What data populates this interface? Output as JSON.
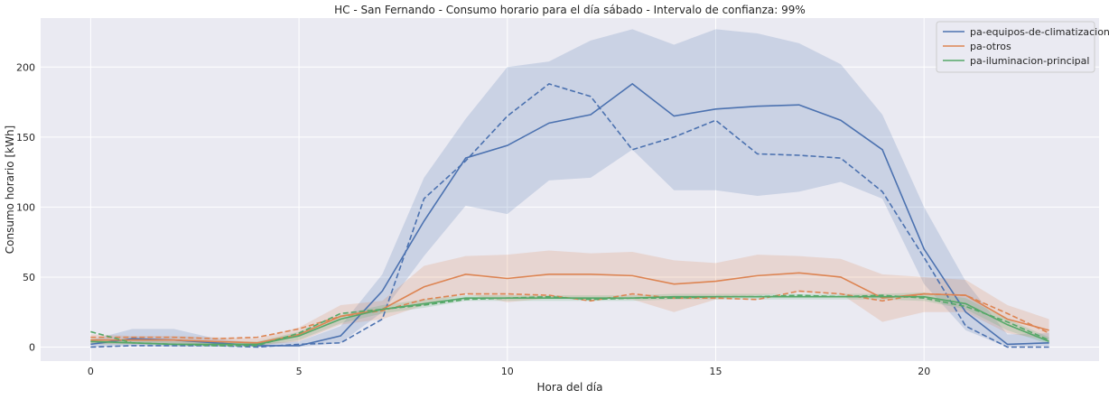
{
  "chart_data": {
    "type": "line",
    "title": "HC - San Fernando - Consumo horario para el día sábado - Intervalo de confianza: 99%",
    "xlabel": "Hora del día",
    "ylabel": "Consumo horario [kWh]",
    "xlim": [
      -1.2,
      24.2
    ],
    "ylim": [
      -10,
      235
    ],
    "xticks": [
      0,
      5,
      10,
      15,
      20
    ],
    "yticks": [
      0,
      50,
      100,
      150,
      200
    ],
    "grid": true,
    "legend_position": "top-right",
    "x": [
      0,
      1,
      2,
      3,
      4,
      5,
      6,
      7,
      8,
      9,
      10,
      11,
      12,
      13,
      14,
      15,
      16,
      17,
      18,
      19,
      20,
      21,
      22,
      23
    ],
    "series": [
      {
        "name": "pa-equipos-de-climatizacion",
        "color": "#4c72b0",
        "mean": [
          2,
          6,
          5,
          3,
          1,
          1,
          8,
          40,
          90,
          135,
          144,
          160,
          166,
          188,
          165,
          170,
          172,
          173,
          162,
          141,
          70,
          25,
          2,
          3
        ],
        "lower": [
          0,
          1,
          0,
          0,
          0,
          0,
          3,
          25,
          65,
          101,
          95,
          119,
          121,
          141,
          112,
          112,
          108,
          111,
          118,
          106,
          45,
          12,
          0,
          1
        ],
        "upper": [
          5,
          13,
          13,
          6,
          3,
          4,
          15,
          52,
          121,
          163,
          200,
          204,
          219,
          227,
          216,
          227,
          224,
          217,
          202,
          166,
          100,
          47,
          9,
          10
        ],
        "reference": [
          0,
          1,
          1,
          1,
          0,
          2,
          3,
          20,
          106,
          133,
          165,
          188,
          179,
          141,
          150,
          162,
          138,
          137,
          135,
          111,
          64,
          15,
          0,
          0
        ]
      },
      {
        "name": "pa-otros",
        "color": "#dd8452",
        "mean": [
          5,
          5,
          5,
          4,
          3,
          9,
          22,
          27,
          43,
          52,
          49,
          52,
          52,
          51,
          45,
          47,
          51,
          53,
          50,
          35,
          38,
          37,
          20,
          12
        ],
        "lower": [
          2,
          2,
          2,
          1,
          1,
          4,
          16,
          20,
          30,
          38,
          32,
          35,
          35,
          34,
          25,
          34,
          37,
          39,
          38,
          18,
          25,
          25,
          10,
          5
        ],
        "upper": [
          9,
          8,
          8,
          7,
          6,
          14,
          30,
          33,
          58,
          65,
          66,
          69,
          67,
          68,
          62,
          60,
          66,
          65,
          63,
          52,
          50,
          48,
          30,
          20
        ],
        "reference": [
          7,
          7,
          7,
          6,
          7,
          13,
          22,
          26,
          34,
          38,
          38,
          37,
          33,
          38,
          35,
          35,
          34,
          40,
          38,
          33,
          38,
          37,
          24,
          10
        ]
      },
      {
        "name": "pa-iluminacion-principal",
        "color": "#55a868",
        "mean": [
          4,
          3,
          2,
          2,
          2,
          8,
          20,
          27,
          31,
          35,
          35,
          35,
          35,
          35,
          36,
          36,
          36,
          36,
          36,
          36,
          36,
          31,
          16,
          4
        ],
        "lower": [
          2,
          2,
          1,
          1,
          1,
          5,
          17,
          24,
          28,
          33,
          33,
          33,
          33,
          33,
          34,
          34,
          34,
          34,
          34,
          34,
          33,
          27,
          12,
          2
        ],
        "upper": [
          6,
          5,
          4,
          4,
          4,
          11,
          23,
          30,
          34,
          37,
          37,
          37,
          37,
          37,
          38,
          38,
          38,
          38,
          38,
          38,
          39,
          35,
          20,
          7
        ],
        "reference": [
          11,
          3,
          2,
          1,
          1,
          10,
          24,
          27,
          30,
          34,
          35,
          36,
          34,
          35,
          35,
          36,
          36,
          37,
          36,
          37,
          35,
          29,
          18,
          5
        ]
      }
    ]
  }
}
